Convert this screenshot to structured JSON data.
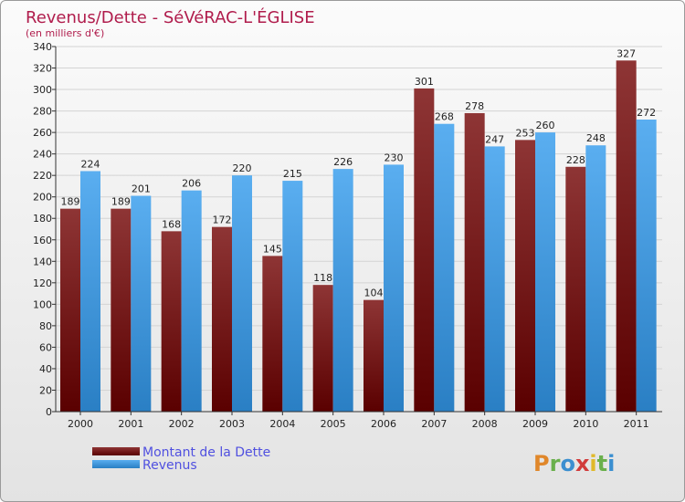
{
  "chart_data": {
    "type": "bar",
    "title": "Revenus/Dette - SéVéRAC-L'ÉGLISE",
    "subtitle": "(en milliers d'€)",
    "categories": [
      "2000",
      "2001",
      "2002",
      "2003",
      "2004",
      "2005",
      "2006",
      "2007",
      "2008",
      "2009",
      "2010",
      "2011"
    ],
    "series": [
      {
        "name": "Montant de la Dette",
        "color": "#7a1a1a",
        "values": [
          189,
          189,
          168,
          172,
          145,
          118,
          104,
          301,
          278,
          253,
          228,
          327
        ]
      },
      {
        "name": "Revenus",
        "color": "#4fa3e6",
        "values": [
          224,
          201,
          206,
          220,
          215,
          226,
          230,
          268,
          247,
          260,
          248,
          272
        ]
      }
    ],
    "ylim": [
      0,
      340
    ],
    "yticks": [
      0,
      20,
      40,
      60,
      80,
      100,
      120,
      140,
      160,
      180,
      200,
      220,
      240,
      260,
      280,
      300,
      320,
      340
    ],
    "grid": true,
    "legend_position": "bottom-left"
  },
  "branding": {
    "logo_text": "Proxiti"
  }
}
